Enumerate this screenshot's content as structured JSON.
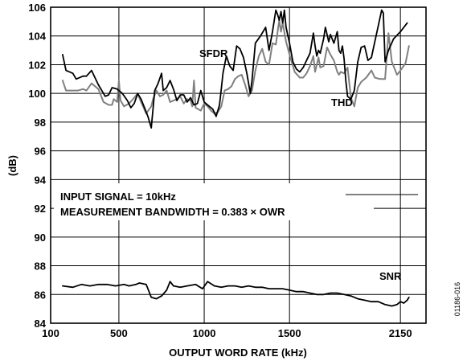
{
  "chart_data": {
    "type": "line",
    "xlabel": "OUTPUT WORD RATE (kHz)",
    "ylabel": "(dB)",
    "xlim": [
      100,
      2300
    ],
    "ylim": [
      84,
      106
    ],
    "x_ticks": [
      100,
      500,
      1000,
      1500,
      2150
    ],
    "x_tick_labels": [
      "100",
      "500",
      "1000",
      "1500",
      "2150"
    ],
    "y_ticks": [
      84,
      86,
      88,
      90,
      92,
      94,
      96,
      98,
      100,
      102,
      104,
      106
    ],
    "grid": true,
    "annotations": [
      {
        "text": "INPUT SIGNAL = 10kHz"
      },
      {
        "text": "MEASUREMENT BANDWIDTH = 0.383 × OWR"
      }
    ],
    "figure_id": "01186-016",
    "series": [
      {
        "name": "SFDR",
        "color": "#000000",
        "points": [
          [
            170,
            102.7
          ],
          [
            190,
            101.6
          ],
          [
            230,
            101.4
          ],
          [
            250,
            101.0
          ],
          [
            290,
            101.2
          ],
          [
            310,
            101.2
          ],
          [
            340,
            101.6
          ],
          [
            380,
            100.6
          ],
          [
            420,
            99.8
          ],
          [
            440,
            99.9
          ],
          [
            460,
            100.4
          ],
          [
            490,
            100.3
          ],
          [
            520,
            100.0
          ],
          [
            550,
            99.5
          ],
          [
            570,
            99.0
          ],
          [
            590,
            99.3
          ],
          [
            610,
            100.0
          ],
          [
            630,
            99.6
          ],
          [
            650,
            99.0
          ],
          [
            670,
            98.4
          ],
          [
            690,
            97.6
          ],
          [
            710,
            100.2
          ],
          [
            730,
            100.7
          ],
          [
            750,
            101.4
          ],
          [
            760,
            100.2
          ],
          [
            780,
            100.4
          ],
          [
            800,
            100.9
          ],
          [
            820,
            100.3
          ],
          [
            840,
            99.5
          ],
          [
            860,
            99.9
          ],
          [
            880,
            99.9
          ],
          [
            900,
            99.4
          ],
          [
            920,
            99.7
          ],
          [
            940,
            99.2
          ],
          [
            960,
            99.3
          ],
          [
            980,
            100.2
          ],
          [
            1000,
            99.4
          ],
          [
            1030,
            99.1
          ],
          [
            1050,
            98.9
          ],
          [
            1070,
            98.4
          ],
          [
            1090,
            99.2
          ],
          [
            1100,
            100.3
          ],
          [
            1110,
            101.4
          ],
          [
            1130,
            102.6
          ],
          [
            1150,
            101.9
          ],
          [
            1170,
            101.6
          ],
          [
            1190,
            103.3
          ],
          [
            1210,
            103.1
          ],
          [
            1230,
            102.5
          ],
          [
            1250,
            101.4
          ],
          [
            1270,
            100.0
          ],
          [
            1280,
            100.9
          ],
          [
            1300,
            103.5
          ],
          [
            1330,
            104.0
          ],
          [
            1360,
            104.6
          ],
          [
            1380,
            103.0
          ],
          [
            1400,
            104.3
          ],
          [
            1420,
            105.8
          ],
          [
            1430,
            105.5
          ],
          [
            1440,
            105.1
          ],
          [
            1450,
            105.7
          ],
          [
            1460,
            104.9
          ],
          [
            1470,
            105.8
          ],
          [
            1480,
            104.6
          ],
          [
            1500,
            103.5
          ],
          [
            1520,
            102.2
          ],
          [
            1540,
            101.7
          ],
          [
            1560,
            101.5
          ],
          [
            1580,
            101.8
          ],
          [
            1600,
            102.3
          ],
          [
            1620,
            102.8
          ],
          [
            1640,
            104.2
          ],
          [
            1650,
            103.3
          ],
          [
            1660,
            102.6
          ],
          [
            1670,
            103.0
          ],
          [
            1680,
            102.8
          ],
          [
            1700,
            103.8
          ],
          [
            1710,
            104.6
          ],
          [
            1730,
            103.6
          ],
          [
            1740,
            104.1
          ],
          [
            1760,
            103.5
          ],
          [
            1780,
            104.3
          ],
          [
            1790,
            103.0
          ],
          [
            1800,
            102.8
          ],
          [
            1810,
            103.3
          ],
          [
            1820,
            102.4
          ],
          [
            1830,
            100.9
          ],
          [
            1840,
            99.8
          ],
          [
            1860,
            99.6
          ],
          [
            1880,
            100.2
          ],
          [
            1900,
            102.2
          ],
          [
            1920,
            103.2
          ],
          [
            1940,
            103.3
          ],
          [
            1960,
            102.3
          ],
          [
            1980,
            102.5
          ],
          [
            2000,
            103.6
          ],
          [
            2020,
            104.7
          ],
          [
            2040,
            105.8
          ],
          [
            2050,
            105.6
          ],
          [
            2060,
            102.2
          ],
          [
            2080,
            103.0
          ],
          [
            2110,
            103.8
          ],
          [
            2150,
            104.3
          ],
          [
            2190,
            104.9
          ]
        ]
      },
      {
        "name": "THD",
        "color": "#808080",
        "points": [
          [
            170,
            100.9
          ],
          [
            190,
            100.2
          ],
          [
            230,
            100.2
          ],
          [
            260,
            100.2
          ],
          [
            290,
            100.3
          ],
          [
            310,
            100.2
          ],
          [
            340,
            100.7
          ],
          [
            380,
            100.3
          ],
          [
            410,
            99.4
          ],
          [
            440,
            99.2
          ],
          [
            460,
            99.2
          ],
          [
            470,
            99.6
          ],
          [
            490,
            99.4
          ],
          [
            500,
            100.9
          ],
          [
            510,
            99.5
          ],
          [
            530,
            99.1
          ],
          [
            560,
            99.3
          ],
          [
            590,
            99.7
          ],
          [
            610,
            100.0
          ],
          [
            630,
            99.4
          ],
          [
            660,
            98.6
          ],
          [
            690,
            99.1
          ],
          [
            700,
            99.6
          ],
          [
            720,
            100.2
          ],
          [
            740,
            99.8
          ],
          [
            760,
            99.9
          ],
          [
            780,
            100.2
          ],
          [
            800,
            99.4
          ],
          [
            820,
            99.5
          ],
          [
            840,
            99.6
          ],
          [
            860,
            99.8
          ],
          [
            880,
            99.3
          ],
          [
            900,
            99.6
          ],
          [
            920,
            99.5
          ],
          [
            930,
            99.1
          ],
          [
            940,
            100.9
          ],
          [
            950,
            99.0
          ],
          [
            980,
            98.8
          ],
          [
            1000,
            99.3
          ],
          [
            1020,
            99.1
          ],
          [
            1040,
            98.8
          ],
          [
            1060,
            98.6
          ],
          [
            1080,
            98.7
          ],
          [
            1100,
            99.1
          ],
          [
            1120,
            100.2
          ],
          [
            1140,
            100.3
          ],
          [
            1160,
            100.5
          ],
          [
            1180,
            101.0
          ],
          [
            1200,
            101.2
          ],
          [
            1220,
            101.3
          ],
          [
            1240,
            100.6
          ],
          [
            1260,
            99.8
          ],
          [
            1280,
            100.2
          ],
          [
            1300,
            101.6
          ],
          [
            1320,
            102.6
          ],
          [
            1340,
            103.1
          ],
          [
            1360,
            102.2
          ],
          [
            1380,
            102.0
          ],
          [
            1400,
            103.5
          ],
          [
            1420,
            103.4
          ],
          [
            1440,
            105.1
          ],
          [
            1450,
            104.3
          ],
          [
            1460,
            104.9
          ],
          [
            1480,
            103.6
          ],
          [
            1500,
            102.7
          ],
          [
            1530,
            101.5
          ],
          [
            1560,
            101.1
          ],
          [
            1580,
            101.1
          ],
          [
            1600,
            101.4
          ],
          [
            1620,
            101.9
          ],
          [
            1640,
            102.6
          ],
          [
            1650,
            101.5
          ],
          [
            1670,
            102.5
          ],
          [
            1680,
            101.8
          ],
          [
            1700,
            101.9
          ],
          [
            1720,
            103.2
          ],
          [
            1740,
            102.7
          ],
          [
            1760,
            102.3
          ],
          [
            1780,
            101.5
          ],
          [
            1790,
            101.3
          ],
          [
            1800,
            101.5
          ],
          [
            1820,
            101.4
          ],
          [
            1840,
            101.8
          ],
          [
            1860,
            99.7
          ],
          [
            1880,
            99.1
          ],
          [
            1900,
            100.4
          ],
          [
            1920,
            100.8
          ],
          [
            1950,
            101.1
          ],
          [
            1980,
            101.6
          ],
          [
            2000,
            101.1
          ],
          [
            2030,
            101.0
          ],
          [
            2060,
            101.0
          ],
          [
            2080,
            104.2
          ],
          [
            2100,
            102.2
          ],
          [
            2130,
            101.3
          ],
          [
            2150,
            101.6
          ],
          [
            2180,
            102.1
          ],
          [
            2200,
            103.3
          ]
        ]
      },
      {
        "name": "SNR",
        "color": "#000000",
        "points": [
          [
            170,
            86.6
          ],
          [
            230,
            86.5
          ],
          [
            280,
            86.7
          ],
          [
            330,
            86.6
          ],
          [
            380,
            86.7
          ],
          [
            430,
            86.7
          ],
          [
            480,
            86.6
          ],
          [
            530,
            86.7
          ],
          [
            560,
            86.6
          ],
          [
            600,
            86.7
          ],
          [
            620,
            86.8
          ],
          [
            660,
            86.7
          ],
          [
            690,
            85.8
          ],
          [
            720,
            85.7
          ],
          [
            750,
            85.9
          ],
          [
            780,
            86.3
          ],
          [
            800,
            86.9
          ],
          [
            820,
            86.6
          ],
          [
            860,
            86.5
          ],
          [
            900,
            86.6
          ],
          [
            950,
            86.7
          ],
          [
            990,
            86.4
          ],
          [
            1020,
            86.9
          ],
          [
            1060,
            86.6
          ],
          [
            1100,
            86.5
          ],
          [
            1140,
            86.6
          ],
          [
            1180,
            86.6
          ],
          [
            1220,
            86.5
          ],
          [
            1260,
            86.6
          ],
          [
            1300,
            86.5
          ],
          [
            1340,
            86.5
          ],
          [
            1380,
            86.4
          ],
          [
            1420,
            86.4
          ],
          [
            1460,
            86.4
          ],
          [
            1500,
            86.3
          ],
          [
            1540,
            86.2
          ],
          [
            1580,
            86.2
          ],
          [
            1620,
            86.1
          ],
          [
            1660,
            86.0
          ],
          [
            1700,
            86.0
          ],
          [
            1740,
            86.1
          ],
          [
            1780,
            86.1
          ],
          [
            1820,
            86.0
          ],
          [
            1860,
            85.9
          ],
          [
            1900,
            85.7
          ],
          [
            1940,
            85.6
          ],
          [
            1980,
            85.5
          ],
          [
            2020,
            85.5
          ],
          [
            2060,
            85.3
          ],
          [
            2100,
            85.2
          ],
          [
            2130,
            85.3
          ],
          [
            2150,
            85.5
          ],
          [
            2170,
            85.4
          ],
          [
            2190,
            85.6
          ],
          [
            2200,
            85.8
          ]
        ]
      }
    ]
  }
}
